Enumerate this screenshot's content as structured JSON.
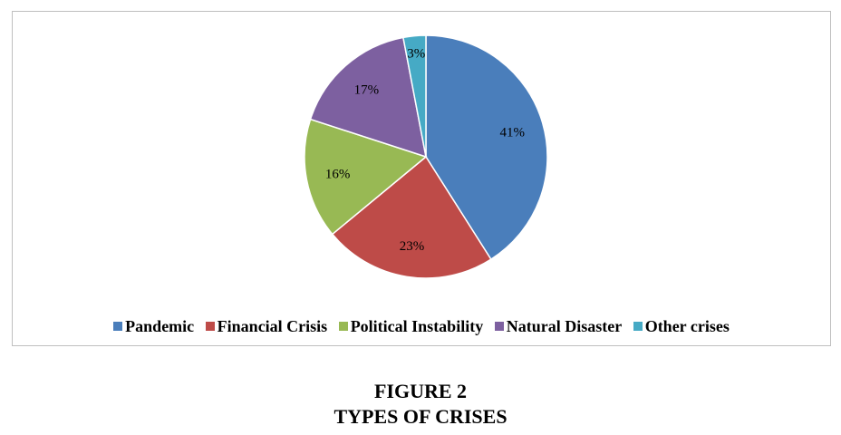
{
  "chart_data": {
    "type": "pie",
    "categories": [
      "Pandemic",
      "Financial Crisis",
      "Political Instability",
      "Natural Disaster",
      "Other crises"
    ],
    "values": [
      41,
      23,
      16,
      17,
      3
    ],
    "labels": [
      "41%",
      "23%",
      "16%",
      "17%",
      "3%"
    ],
    "colors": [
      "#4a7ebb",
      "#be4b48",
      "#98b954",
      "#7d60a0",
      "#46aac5"
    ],
    "legend_position": "bottom"
  },
  "caption": {
    "line1": "FIGURE 2",
    "line2": "TYPES OF CRISES"
  }
}
